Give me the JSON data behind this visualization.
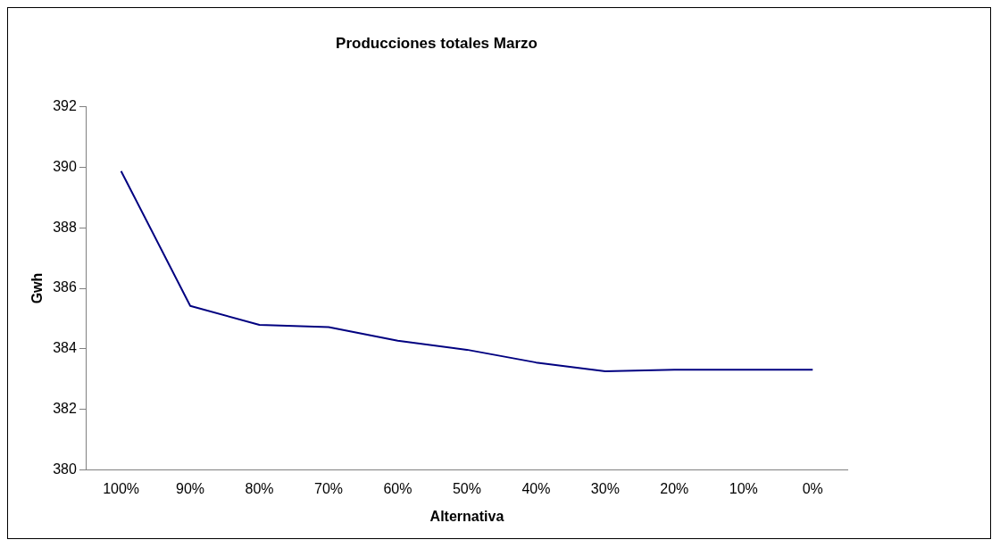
{
  "chart_data": {
    "type": "line",
    "title": "Producciones totales Marzo",
    "xlabel": "Alternativa",
    "ylabel": "Gwh",
    "categories": [
      "100%",
      "90%",
      "80%",
      "70%",
      "60%",
      "50%",
      "40%",
      "30%",
      "20%",
      "10%",
      "0%"
    ],
    "series": [
      {
        "color": "#000080",
        "values": [
          389.87,
          385.42,
          384.79,
          384.72,
          384.27,
          383.97,
          383.55,
          383.26,
          383.31,
          383.31,
          383.31
        ]
      }
    ],
    "ylim": [
      380,
      392
    ],
    "yticks": [
      380,
      382,
      384,
      386,
      388,
      390,
      392
    ],
    "grid": false,
    "legend": false,
    "marker": "none",
    "line_style": "solid"
  }
}
